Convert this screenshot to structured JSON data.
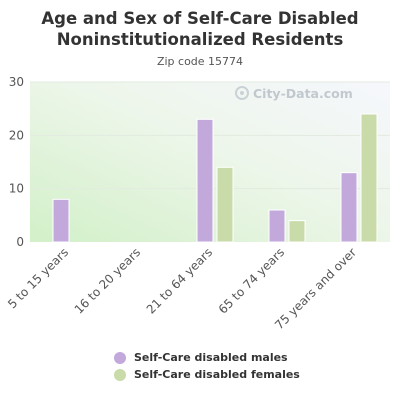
{
  "chart_data": {
    "type": "bar",
    "title": "Age and Sex of Self-Care Disabled Noninstitutionalized Residents",
    "subtitle": "Zip code 15774",
    "categories": [
      "5 to 15 years",
      "16 to 20 years",
      "21 to 64 years",
      "65 to 74 years",
      "75 years and over"
    ],
    "series": [
      {
        "name": "Self-Care disabled males",
        "values": [
          8,
          0,
          23,
          6,
          13
        ],
        "color": "#c3a8dc"
      },
      {
        "name": "Self-Care disabled females",
        "values": [
          0,
          0,
          14,
          4,
          24
        ],
        "color": "#c8dba8"
      }
    ],
    "ylim": [
      0,
      30
    ],
    "yticks": [
      0,
      10,
      20,
      30
    ],
    "grid": true,
    "legend": "bottom",
    "watermark": "City-Data.com"
  },
  "text": {
    "title_line1": "Age and Sex of Self-Care Disabled",
    "title_line2": "Noninstitutionalized Residents",
    "subtitle": "Zip code 15774"
  }
}
